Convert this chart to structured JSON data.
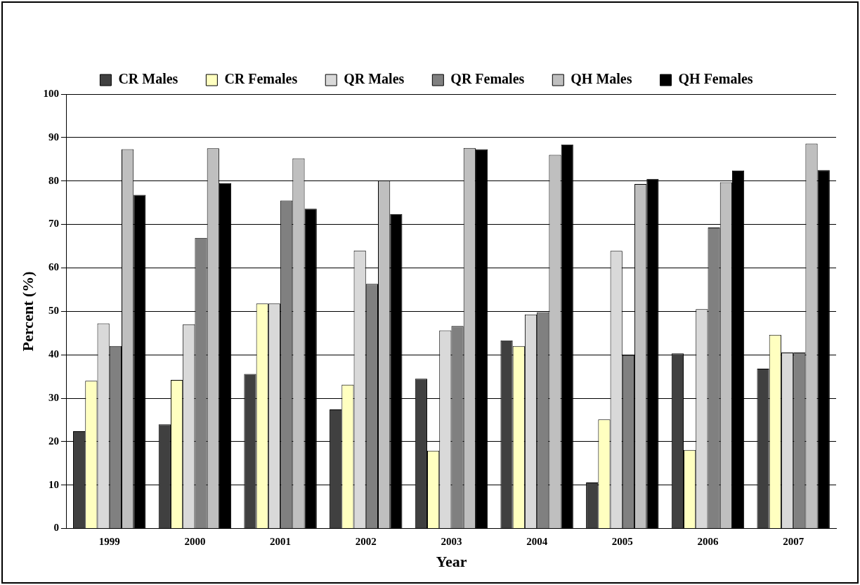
{
  "chart_data": {
    "type": "bar",
    "xlabel": "Year",
    "ylabel": "Percent (%)",
    "categories": [
      "1999",
      "2000",
      "2001",
      "2002",
      "2003",
      "2004",
      "2005",
      "2006",
      "2007"
    ],
    "series": [
      {
        "name": "CR Males",
        "color": "#404040",
        "values": [
          22.4,
          24,
          35.6,
          27.4,
          34.5,
          43.3,
          10.6,
          40.3,
          36.8
        ]
      },
      {
        "name": "CR Females",
        "color": "#ffffc0",
        "values": [
          34,
          34.2,
          51.8,
          33.1,
          17.9,
          42,
          25.1,
          18.1,
          44.6
        ]
      },
      {
        "name": "QR Males",
        "color": "#d9d9d9",
        "values": [
          47.2,
          47,
          51.8,
          64,
          45.6,
          49.3,
          63.9,
          50.5,
          40.5
        ]
      },
      {
        "name": "QR Females",
        "color": "#808080",
        "values": [
          42,
          66.9,
          75.5,
          56.3,
          46.6,
          49.8,
          39.9,
          69.3,
          40.5
        ]
      },
      {
        "name": "QH Males",
        "color": "#bfbfbf",
        "values": [
          87.3,
          87.5,
          85.2,
          80.1,
          87.6,
          86,
          79.3,
          79.7,
          88.6
        ]
      },
      {
        "name": "QH Females",
        "color": "#000000",
        "values": [
          76.8,
          79.5,
          73.6,
          72.4,
          87.3,
          88.4,
          80.5,
          82.4,
          82.5
        ]
      }
    ],
    "ylim": [
      0,
      100
    ],
    "yticks": [
      0,
      10,
      20,
      30,
      40,
      50,
      60,
      70,
      80,
      90,
      100
    ],
    "grid": "y",
    "legend": "top"
  }
}
